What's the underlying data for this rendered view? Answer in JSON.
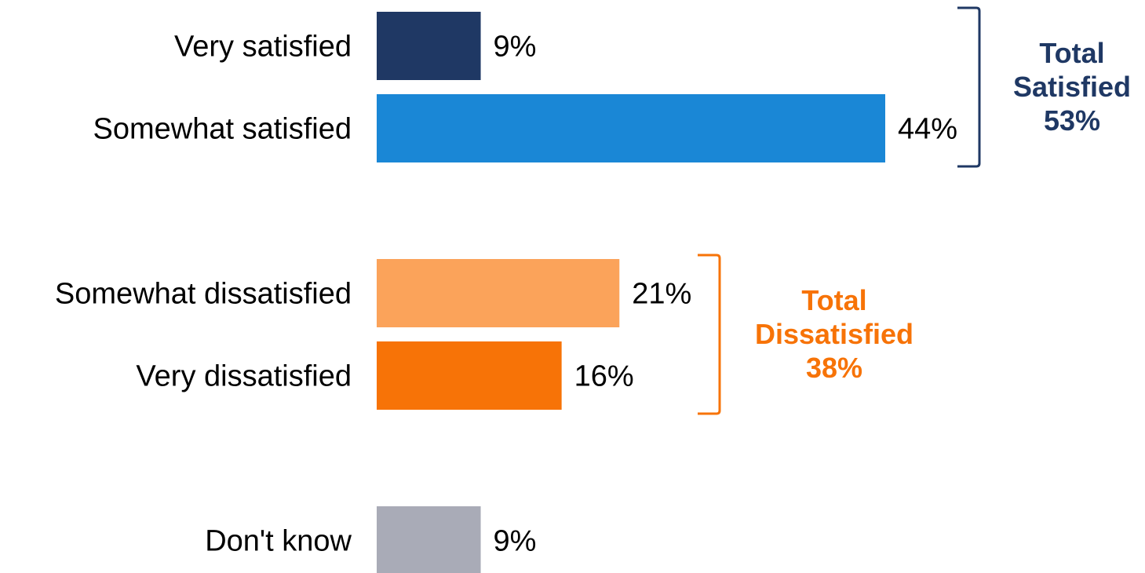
{
  "chart_data": {
    "type": "bar",
    "orientation": "horizontal",
    "categories": [
      "Very satisfied",
      "Somewhat satisfied",
      "Somewhat dissatisfied",
      "Very dissatisfied",
      "Don't know"
    ],
    "values": [
      9,
      44,
      21,
      16,
      9
    ],
    "value_labels": [
      "9%",
      "44%",
      "21%",
      "16%",
      "9%"
    ],
    "colors": [
      "#1f3864",
      "#1a87d6",
      "#fba35a",
      "#f77307",
      "#a9abb7"
    ],
    "xlim": [
      0,
      44
    ],
    "grid": false,
    "groups": [
      {
        "line1": "Total",
        "line2": "Satisfied",
        "line3": "53%",
        "members": [
          0,
          1
        ],
        "color": "#1f3864"
      },
      {
        "line1": "Total",
        "line2": "Dissatisfied",
        "line3": "38%",
        "members": [
          2,
          3
        ],
        "color": "#f77307"
      }
    ]
  }
}
